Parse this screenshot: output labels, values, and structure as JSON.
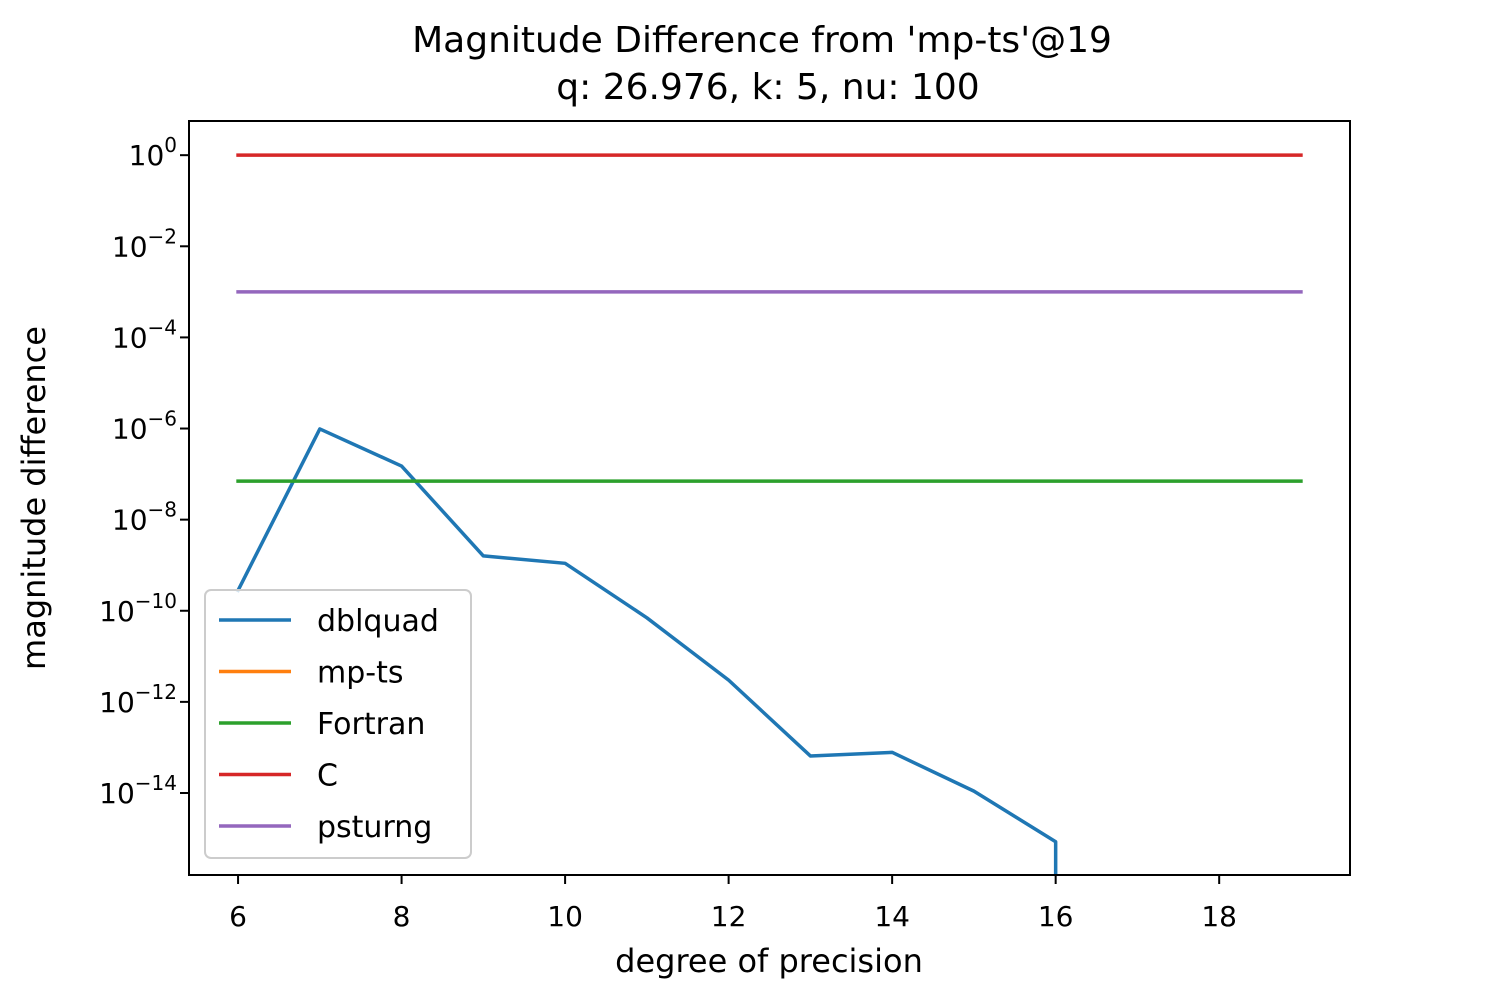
{
  "chart_data": {
    "type": "line",
    "title": "Magnitude Difference from 'mp-ts'@19",
    "subtitle": "q: 26.976, k: 5, nu: 100",
    "xlabel": "degree of precision",
    "ylabel": "magnitude difference",
    "xlim": [
      5.4,
      19.6
    ],
    "ylim_log10": [
      -15.8,
      0.75
    ],
    "yscale": "log",
    "xticks": [
      6,
      8,
      10,
      12,
      14,
      16,
      18
    ],
    "xtick_labels": [
      "6",
      "8",
      "10",
      "12",
      "14",
      "16",
      "18"
    ],
    "yticks_exponents": [
      0,
      -2,
      -4,
      -6,
      -8,
      -10,
      -12,
      -14
    ],
    "ytick_base": "10",
    "ytick_exponent_labels": [
      "0",
      "−2",
      "−4",
      "−6",
      "−8",
      "−10",
      "−12",
      "−14"
    ],
    "grid": false,
    "legend_position": "lower-left",
    "series": [
      {
        "name": "dblquad",
        "color": "#1f77b4",
        "x": [
          6,
          7,
          8,
          9,
          10,
          11,
          12,
          13,
          14,
          15,
          16,
          16
        ],
        "y": [
          2.8e-10,
          9.8e-07,
          1.5e-07,
          1.6e-09,
          1.1e-09,
          7e-11,
          3e-12,
          6.5e-14,
          7.8e-14,
          1.1e-14,
          8.5e-16,
          1e-17
        ]
      },
      {
        "name": "mp-ts",
        "color": "#ff7f0e",
        "x": [],
        "y": []
      },
      {
        "name": "Fortran",
        "color": "#2ca02c",
        "x": [
          6,
          19
        ],
        "y": [
          7e-08,
          7e-08
        ]
      },
      {
        "name": "C",
        "color": "#d62728",
        "x": [
          6,
          19
        ],
        "y": [
          1.0,
          1.0
        ]
      },
      {
        "name": "psturng",
        "color": "#9467bd",
        "x": [
          6,
          19
        ],
        "y": [
          0.001,
          0.001
        ]
      }
    ]
  }
}
